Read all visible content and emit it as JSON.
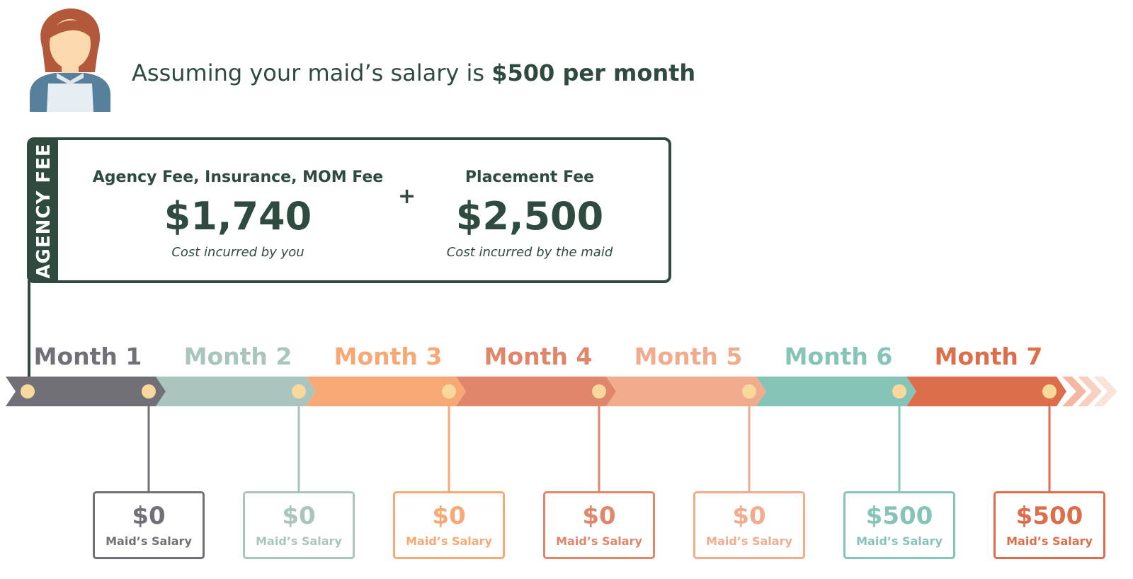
{
  "header": {
    "text_prefix": "Assuming your maid’s salary is ",
    "text_bold": "$500 per month"
  },
  "agency_fee": {
    "tab_label": "AGENCY FEE",
    "left": {
      "title": "Agency Fee, Insurance, MOM Fee",
      "amount": "$1,740",
      "note": "Cost incurred by you"
    },
    "plus": "+",
    "right": {
      "title": "Placement Fee",
      "amount": "$2,500",
      "note": "Cost incurred by the maid"
    }
  },
  "months": [
    {
      "label": "Month 1",
      "color": "#717077",
      "salary": "$0",
      "salary_label": "Maid’s Salary"
    },
    {
      "label": "Month 2",
      "color": "#a9c5bd",
      "salary": "$0",
      "salary_label": "Maid’s Salary"
    },
    {
      "label": "Month 3",
      "color": "#f8a874",
      "salary": "$0",
      "salary_label": "Maid’s Salary"
    },
    {
      "label": "Month 4",
      "color": "#e0866a",
      "salary": "$0",
      "salary_label": "Maid’s Salary"
    },
    {
      "label": "Month 5",
      "color": "#f1ac8e",
      "salary": "$0",
      "salary_label": "Maid’s Salary"
    },
    {
      "label": "Month 6",
      "color": "#86c4b8",
      "salary": "$500",
      "salary_label": "Maid’s Salary"
    },
    {
      "label": "Month 7",
      "color": "#dc6e4b",
      "salary": "$500",
      "salary_label": "Maid’s Salary"
    }
  ],
  "colors": {
    "dark_green": "#2f4a3e",
    "dot": "#f9d99b",
    "skin": "#fbd9ac",
    "hair": "#b3593b",
    "uniform": "#57809c"
  }
}
